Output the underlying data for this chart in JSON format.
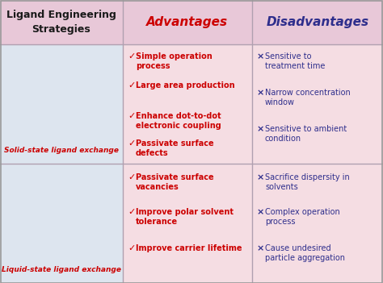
{
  "title_col1": "Ligand Engineering\nStrategies",
  "title_col2": "Advantages",
  "title_col3": "Disadvantages",
  "title_col1_color": "#1a1a1a",
  "title_col2_color": "#cc0000",
  "title_col3_color": "#2e2e8c",
  "header_bg": "#e8c8d8",
  "row1_adv_bg": "#f5dde3",
  "row1_col1_bg": "#dde5ef",
  "row2_adv_bg": "#f5dde3",
  "row2_col1_bg": "#dde5ef",
  "row1_label": "Solid-state ligand exchange",
  "row2_label": "Liquid-state ligand exchange",
  "label_color": "#cc0000",
  "row1_advantages": [
    "Simple operation\nprocess",
    "Large area production",
    "Enhance dot-to-dot\nelectronic coupling",
    "Passivate surface\ndefects"
  ],
  "row1_disadvantages": [
    "Sensitive to\ntreatment time",
    "Narrow concentration\nwindow",
    "Sensitive to ambient\ncondition"
  ],
  "row2_advantages": [
    "Passivate surface\nvacancies",
    "Improve polar solvent\ntolerance",
    "Improve carrier lifetime"
  ],
  "row2_disadvantages": [
    "Sacrifice dispersity in\nsolvents",
    "Complex operation\nprocess",
    "Cause undesired\nparticle aggregation"
  ],
  "adv_color": "#cc0000",
  "disadv_color": "#2e2e8c",
  "check_color": "#cc0000",
  "cross_color": "#2e2e8c",
  "line_color": "#b0a0b0",
  "fig_width": 4.74,
  "fig_height": 3.51,
  "dpi": 100
}
